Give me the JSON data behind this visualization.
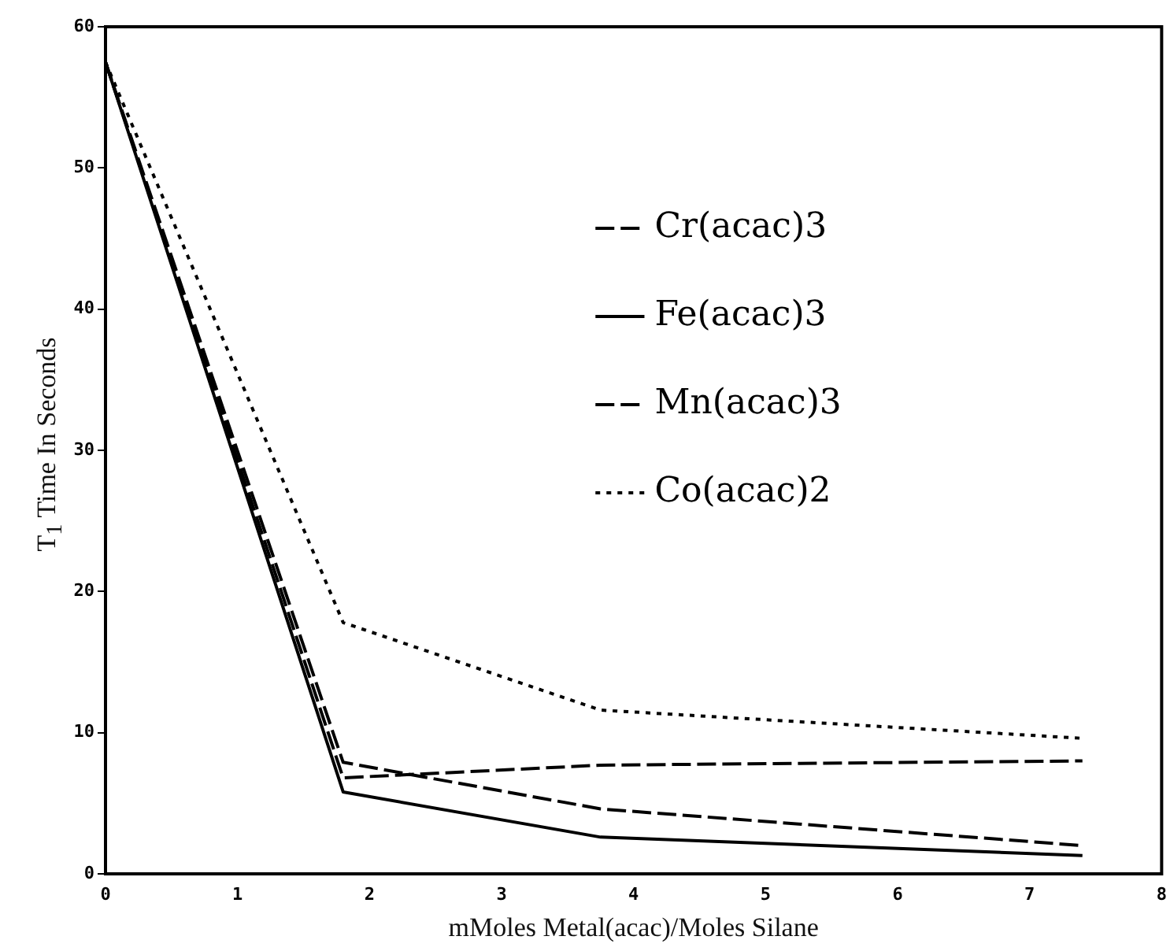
{
  "chart_data": {
    "type": "line",
    "xlabel": "mMoles Metal(acac)/Moles Silane",
    "ylabel": "T$_{1}$ Time In Seconds",
    "x": [
      0,
      1.8,
      3.75,
      7.4
    ],
    "series": [
      {
        "name": "Cr(acac)3",
        "color": "#000000",
        "line_style": "dashed",
        "values": [
          57.5,
          6.8,
          7.7,
          8.0
        ]
      },
      {
        "name": "Fe(acac)3",
        "color": "#000000",
        "line_style": "solid",
        "values": [
          57.5,
          5.8,
          2.6,
          1.3
        ]
      },
      {
        "name": "Mn(acac)3",
        "color": "#000000",
        "line_style": "dashed",
        "values": [
          57.5,
          7.9,
          4.6,
          2.0
        ]
      },
      {
        "name": "Co(acac)2",
        "color": "#000000",
        "line_style": "dotted",
        "values": [
          57.5,
          17.8,
          11.6,
          9.6
        ]
      }
    ],
    "xlim": [
      0,
      8
    ],
    "xticks": [
      0,
      1,
      2,
      3,
      4,
      5,
      6,
      7,
      8
    ],
    "ylim": [
      0,
      60
    ],
    "yticks": [
      0,
      10,
      20,
      30,
      40,
      50,
      60
    ],
    "grid": false,
    "legend": "top right",
    "marker": "none"
  }
}
